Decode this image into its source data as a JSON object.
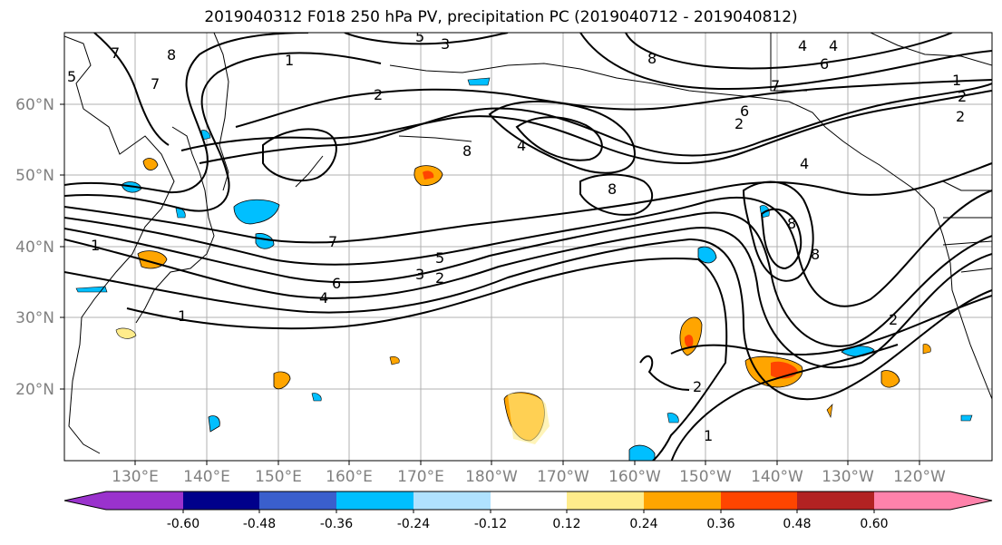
{
  "title": "2019040312 F018 250 hPa PV, precipitation PC (2019040712 - 2019040812)",
  "lat_labels": [
    "60°N",
    "50°N",
    "40°N",
    "30°N",
    "20°N"
  ],
  "lon_labels": [
    "130°E",
    "140°E",
    "150°E",
    "160°E",
    "170°E",
    "180°W",
    "170°W",
    "160°W",
    "150°W",
    "140°W",
    "130°W",
    "120°W"
  ],
  "colorbar": {
    "colors": [
      "#9a32cd",
      "#00008b",
      "#3a5fcd",
      "#00bfff",
      "#b0e2ff",
      "#ffffff",
      "#ffec8b",
      "#ffa500",
      "#ff4500",
      "#b22222",
      "#ff82ab"
    ],
    "tick_labels": [
      "-0.60",
      "-0.48",
      "-0.36",
      "-0.24",
      "-0.12",
      "0.12",
      "0.24",
      "0.36",
      "0.48",
      "0.60"
    ]
  },
  "contour_labels": [
    "5",
    "7",
    "8",
    "1",
    "3",
    "5",
    "4",
    "8",
    "7",
    "2",
    "8",
    "4",
    "8",
    "6",
    "2",
    "7",
    "4",
    "8",
    "8",
    "6",
    "2",
    "4",
    "1",
    "7",
    "5",
    "3",
    "2",
    "6",
    "4",
    "1",
    "2",
    "1",
    "2",
    "2",
    "1"
  ]
}
